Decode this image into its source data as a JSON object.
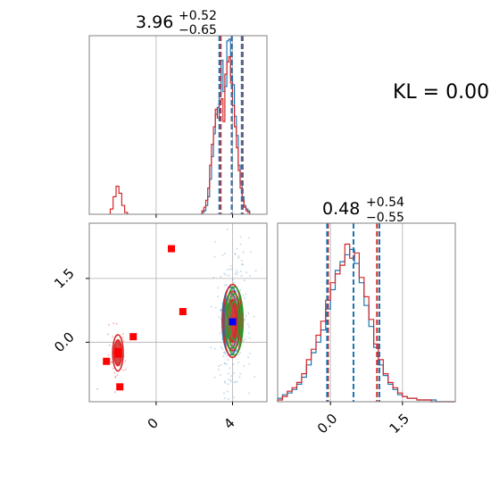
{
  "figure": {
    "annotation": "KL = 0.00"
  },
  "colors": {
    "blue": "#1f77b4",
    "red": "#d62728",
    "green": "#2ca02c",
    "marker": "#ff0000",
    "truth_marker": "#0000ff",
    "grid": "#b0b0b0"
  },
  "chart_data": [
    {
      "type": "histogram",
      "panel": "top-left",
      "title": "3.96",
      "title_sup": "+0.52",
      "title_sub": "−0.65",
      "xlim": [
        -3.5,
        5.8
      ],
      "ylim": [
        0,
        1
      ],
      "xticks": [
        0,
        4
      ],
      "quantile_lines": {
        "blue": [
          3.31,
          3.96,
          4.48
        ],
        "red": [
          3.38,
          3.96,
          4.53
        ]
      },
      "series": [
        {
          "color": "blue",
          "bin_start": 2.4,
          "bin_width": 0.1,
          "values": [
            0.01,
            0.02,
            0.05,
            0.1,
            0.2,
            0.33,
            0.46,
            0.57,
            0.61,
            0.68,
            0.88,
            0.7,
            0.73,
            0.99,
            1.0,
            0.79,
            0.74,
            0.56,
            0.45,
            0.28,
            0.18,
            0.1,
            0.05,
            0.03,
            0.02
          ]
        },
        {
          "color": "red",
          "bin_start": -2.4,
          "bin_width": 0.15,
          "values": [
            0.03,
            0.1,
            0.16,
            0.12,
            0.05,
            0.01
          ]
        },
        {
          "color": "red",
          "bin_start": 2.4,
          "bin_width": 0.1,
          "values": [
            0.02,
            0.04,
            0.08,
            0.15,
            0.28,
            0.4,
            0.5,
            0.6,
            0.55,
            0.63,
            0.66,
            0.53,
            0.8,
            0.87,
            0.9,
            0.75,
            0.62,
            0.5,
            0.38,
            0.25,
            0.15,
            0.08,
            0.04,
            0.02,
            0.01
          ]
        }
      ]
    },
    {
      "type": "scatter",
      "panel": "bottom-left",
      "xlim": [
        -3.5,
        5.8
      ],
      "ylim": [
        -1.4,
        2.8
      ],
      "xticks": [
        0,
        4
      ],
      "yticks": [
        0.0,
        1.5
      ],
      "xtick_labels": [
        "0",
        "4"
      ],
      "ytick_labels": [
        "0.0",
        "1.5"
      ],
      "red_markers": [
        [
          0.8,
          2.2
        ],
        [
          1.4,
          0.72
        ],
        [
          -1.2,
          0.13
        ],
        [
          -2.6,
          -0.45
        ],
        [
          -1.9,
          -1.05
        ],
        [
          -2.0,
          -0.28
        ],
        [
          -2.0,
          -0.22
        ]
      ],
      "blue_marker": [
        4.0,
        0.48
      ],
      "contour_groups": [
        {
          "color": "blue",
          "center": [
            4.0,
            0.5
          ],
          "radii": [
            [
              0.9,
              1.6
            ],
            [
              0.72,
              1.3
            ],
            [
              0.52,
              0.92
            ]
          ]
        },
        {
          "color": "red",
          "center": [
            4.0,
            0.5
          ],
          "radii": [
            [
              1.0,
              1.72
            ],
            [
              0.78,
              1.4
            ],
            [
              0.55,
              1.0
            ]
          ]
        },
        {
          "color": "green",
          "center": [
            4.0,
            0.5
          ],
          "radii": [
            [
              0.92,
              1.6
            ],
            [
              0.72,
              1.28
            ],
            [
              0.5,
              0.9
            ]
          ]
        },
        {
          "color": "red",
          "center": [
            -2.0,
            -0.25
          ],
          "radii": [
            [
              0.55,
              0.85
            ],
            [
              0.4,
              0.6
            ]
          ]
        }
      ]
    },
    {
      "type": "histogram",
      "panel": "bottom-right",
      "title": "0.48",
      "title_sup": "+0.54",
      "title_sub": "−0.55",
      "xlim": [
        -1.1,
        2.6
      ],
      "ylim": [
        0,
        1
      ],
      "xticks": [
        0.0,
        1.5
      ],
      "xtick_labels": [
        "0.0",
        "1.5"
      ],
      "quantile_lines": {
        "blue": [
          -0.07,
          0.48,
          1.02
        ],
        "red": [
          -0.05,
          0.48,
          0.97
        ]
      },
      "series": [
        {
          "color": "blue",
          "bin_start": -1.1,
          "bin_width": 0.1,
          "values": [
            0.02,
            0.04,
            0.05,
            0.07,
            0.1,
            0.14,
            0.21,
            0.28,
            0.34,
            0.41,
            0.53,
            0.64,
            0.75,
            0.8,
            0.84,
            0.87,
            0.79,
            0.68,
            0.55,
            0.43,
            0.31,
            0.21,
            0.15,
            0.1,
            0.07,
            0.04,
            0.03,
            0.02,
            0.02,
            0.01,
            0.01,
            0.01,
            0.01,
            0.0,
            0.0,
            0.0,
            0.0
          ]
        },
        {
          "color": "red",
          "bin_start": -1.1,
          "bin_width": 0.1,
          "values": [
            0.01,
            0.03,
            0.06,
            0.08,
            0.11,
            0.16,
            0.24,
            0.3,
            0.38,
            0.46,
            0.58,
            0.68,
            0.73,
            0.78,
            0.9,
            0.82,
            0.85,
            0.71,
            0.6,
            0.47,
            0.33,
            0.24,
            0.16,
            0.11,
            0.08,
            0.05,
            0.03,
            0.02,
            0.02,
            0.01,
            0.01,
            0.01,
            0.0,
            0.0,
            0.0,
            0.0,
            0.0
          ]
        }
      ]
    }
  ]
}
